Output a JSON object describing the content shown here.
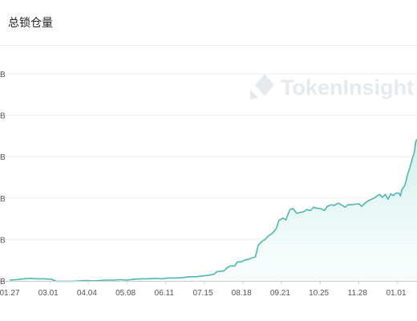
{
  "header": {
    "title": "总锁仓量"
  },
  "watermark": {
    "text": "TokenInsight"
  },
  "colors": {
    "line": "#4fb8b0",
    "fill_top": "#cdeeea",
    "fill_bottom": "#f5fcfb",
    "grid": "#eeeeee",
    "axis": "#cccccc"
  },
  "chart_data": {
    "type": "area",
    "title": "总锁仓量",
    "xlabel": "",
    "ylabel": "",
    "y_tick_labels": [
      "B",
      "B",
      "B",
      "B",
      "B",
      "B"
    ],
    "ylim": [
      0,
      5
    ],
    "x_tick_labels": [
      "01.27",
      "03.01",
      "04.04",
      "05.08",
      "06.11",
      "07.15",
      "08.18",
      "09.21",
      "10.25",
      "11.28",
      "01.01"
    ],
    "grid": true,
    "legend": "none",
    "series": [
      {
        "x": [
          0,
          5,
          10,
          15,
          20,
          25,
          30,
          34,
          38,
          40,
          45,
          50,
          55,
          60,
          65,
          70,
          75,
          80,
          85,
          90,
          95,
          100,
          105,
          110,
          115,
          120,
          125,
          130,
          135,
          140,
          145,
          148,
          150,
          155,
          158,
          160,
          163,
          165,
          168,
          170,
          173,
          175,
          178,
          180,
          183,
          185,
          188,
          190,
          193,
          195,
          198,
          200,
          203,
          205,
          208,
          210,
          213,
          215,
          218,
          220,
          223,
          225,
          228,
          230,
          233,
          235,
          238,
          240,
          243,
          245,
          248,
          250,
          253,
          255,
          258,
          260,
          262,
          264,
          266,
          268,
          270,
          272,
          274,
          276,
          278,
          279,
          280,
          281,
          282,
          283,
          284,
          285,
          286,
          287,
          288,
          290,
          292,
          293,
          294,
          295
        ],
        "values": [
          0.02,
          0.03,
          0.05,
          0.06,
          0.05,
          0.05,
          0.04,
          -0.01,
          -0.01,
          -0.01,
          -0.01,
          0.0,
          0.01,
          0.0,
          0.01,
          0.02,
          0.02,
          0.03,
          0.02,
          0.04,
          0.05,
          0.05,
          0.06,
          0.05,
          0.07,
          0.07,
          0.08,
          0.1,
          0.1,
          0.12,
          0.14,
          0.16,
          0.22,
          0.24,
          0.33,
          0.36,
          0.36,
          0.46,
          0.46,
          0.5,
          0.52,
          0.55,
          0.58,
          0.86,
          0.96,
          1.0,
          1.1,
          1.14,
          1.26,
          1.46,
          1.52,
          1.47,
          1.72,
          1.75,
          1.63,
          1.65,
          1.67,
          1.72,
          1.7,
          1.78,
          1.75,
          1.75,
          1.7,
          1.8,
          1.84,
          1.82,
          1.88,
          1.84,
          1.78,
          1.84,
          1.84,
          1.85,
          1.86,
          1.8,
          1.9,
          1.94,
          1.97,
          2.0,
          2.05,
          2.09,
          2.02,
          2.09,
          1.97,
          2.1,
          2.06,
          2.1,
          2.12,
          2.12,
          2.12,
          2.05,
          2.2,
          2.25,
          2.3,
          2.4,
          2.55,
          2.75,
          3.0,
          3.1,
          3.35,
          3.42
        ]
      }
    ]
  }
}
